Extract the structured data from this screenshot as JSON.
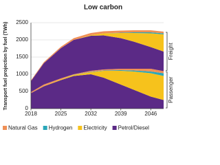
{
  "chart_data": {
    "type": "stacked-area",
    "title": "Low carbon",
    "y_label": "Transport fuel projection by fuel (TWh)",
    "x": [
      2018,
      2021,
      2025,
      2028,
      2032,
      2035,
      2039,
      2042,
      2046,
      2049
    ],
    "xlim": [
      2018,
      2049
    ],
    "xticks": [
      2018,
      2025,
      2032,
      2039,
      2046
    ],
    "ylim": [
      0,
      2500
    ],
    "yticks": [
      0,
      500,
      1000,
      1500,
      2000,
      2500
    ],
    "grid": true,
    "legend": "bottom",
    "series": [
      {
        "name": "Petrol/Diesel",
        "color": "#5b2a86"
      },
      {
        "name": "Electricity",
        "color": "#f6c21c"
      },
      {
        "name": "Hydrogen",
        "color": "#2aa7b9"
      },
      {
        "name": "Natural Gas",
        "color": "#ef8f56"
      }
    ],
    "groups": [
      {
        "name": "Passenger",
        "series": [
          {
            "values": [
              450,
              650,
              830,
              950,
              1000,
              900,
              700,
              550,
              350,
              250
            ]
          },
          {
            "values": [
              0,
              10,
              20,
              30,
              60,
              200,
              400,
              530,
              680,
              700
            ]
          },
          {
            "values": [
              0,
              0,
              0,
              5,
              10,
              10,
              20,
              30,
              50,
              80
            ]
          },
          {
            "values": [
              30,
              40,
              30,
              15,
              30,
              30,
              40,
              50,
              80,
              60
            ]
          }
        ]
      },
      {
        "name": "Freight",
        "series": [
          {
            "values": [
              320,
              620,
              880,
              1000,
              1020,
              990,
              890,
              790,
              630,
              570
            ]
          },
          {
            "values": [
              0,
              0,
              0,
              0,
              20,
              60,
              150,
              250,
              400,
              500
            ]
          },
          {
            "values": [
              0,
              0,
              0,
              0,
              0,
              0,
              10,
              20,
              30,
              30
            ]
          },
          {
            "values": [
              20,
              30,
              40,
              50,
              60,
              60,
              60,
              60,
              60,
              50
            ]
          }
        ]
      }
    ]
  }
}
